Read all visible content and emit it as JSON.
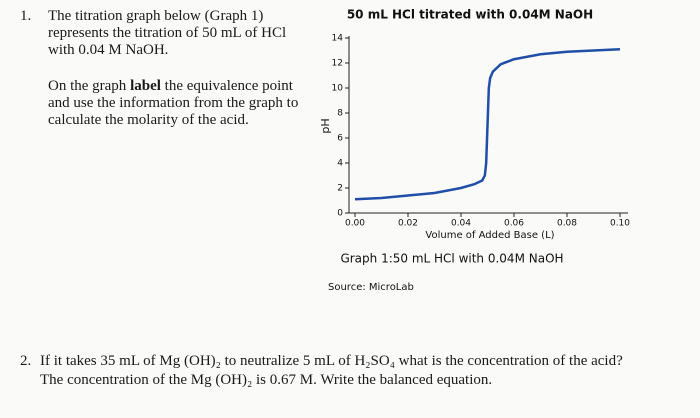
{
  "question1": {
    "number": "1.",
    "text": "The titration graph below (Graph 1) represents the titration of 50 mL of HCl with 0.04 M NaOH.",
    "instruction": [
      "On the graph ",
      "label",
      " the equivalence point and use the information from the graph to calculate the molarity of the acid."
    ]
  },
  "chart_data": {
    "type": "line",
    "title": "50 mL HCl titrated with 0.04M NaOH",
    "x_label": "Volume of Added Base (L)",
    "y_label": "pH",
    "x": [
      0,
      0.01,
      0.02,
      0.03,
      0.04,
      0.045,
      0.048,
      0.049,
      0.0495,
      0.05,
      0.0505,
      0.051,
      0.052,
      0.055,
      0.06,
      0.07,
      0.08,
      0.09,
      0.1
    ],
    "values": [
      1.1,
      1.2,
      1.4,
      1.6,
      2.0,
      2.3,
      2.6,
      3.0,
      4.0,
      7.0,
      10.0,
      10.8,
      11.3,
      11.9,
      12.3,
      12.7,
      12.9,
      13.0,
      13.1
    ],
    "color": "#1f4fa8",
    "xlim": [
      0,
      0.1
    ],
    "xticks": [
      {
        "value": 0,
        "label": "0.00"
      },
      {
        "value": 0.02,
        "label": "0.02"
      },
      {
        "value": 0.04,
        "label": "0.04"
      },
      {
        "value": 0.06,
        "label": "0.06"
      },
      {
        "value": 0.08,
        "label": "0.08"
      },
      {
        "value": 0.1,
        "label": "0.10"
      }
    ],
    "ylim": [
      0,
      14
    ],
    "yticks": [
      0,
      2,
      4,
      6,
      8,
      10,
      12,
      14
    ]
  },
  "caption": "Graph 1:50 mL HCl with 0.04M NaOH",
  "source": "Source: MicroLab",
  "question2": {
    "number": "2.",
    "line1": "If it takes 35 mL of Mg (OH)₂ to neutralize 5 mL of H₂SO₄ what is the concentration of the acid?",
    "line2": "The concentration of the Mg (OH)₂ is 0.67 M. Write the balanced equation."
  }
}
